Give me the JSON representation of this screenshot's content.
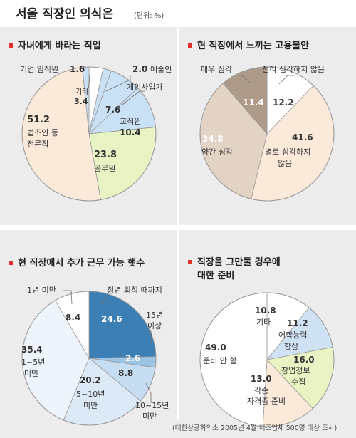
{
  "header": {
    "title": "서울 직장인 의식은",
    "unit": "(단위: %)"
  },
  "source": "(대한상공회의소 2005년 4월  제조업체 500명 대상 조사)",
  "colors": {
    "panel_bg": "#ececec",
    "bullet": "#e0322b",
    "slice_line": "#9a9a9a",
    "label_line": "#6f6f6f",
    "text": "#333333"
  },
  "chart_data": [
    {
      "type": "pie",
      "title": "자녀에게 바라는 직업",
      "slices": [
        {
          "label": "기타",
          "value": 3.4,
          "color": "#ffffff"
        },
        {
          "label": "예술인",
          "value": 2.0,
          "color": "#c9e0f5"
        },
        {
          "label": "개인사업가",
          "value": 7.6,
          "color": "#c9e0f5"
        },
        {
          "label": "교직원",
          "value": 10.4,
          "color": "#c9e0f5"
        },
        {
          "label": "공무원",
          "value": 23.8,
          "color": "#e7f3c3"
        },
        {
          "label": "법조인 등 전문직",
          "value": 51.2,
          "color": "#fbe9da"
        },
        {
          "label": "기업 임직원",
          "value": 1.6,
          "color": "#c9e0f5"
        }
      ]
    },
    {
      "type": "pie",
      "title": "현 직장에서 느끼는 고용불안",
      "slices": [
        {
          "label": "전혀 심각하지 않음",
          "value": 12.2,
          "color": "#ffffff"
        },
        {
          "label": "별로 심각하지 않음",
          "value": 41.6,
          "color": "#fbe9da"
        },
        {
          "label": "약간 심각",
          "value": 34.8,
          "color": "#e3d3c5"
        },
        {
          "label": "매우 심각",
          "value": 11.4,
          "color": "#ad9a88"
        }
      ]
    },
    {
      "type": "pie",
      "title": "현 직장에서 추가 근무 가능 햇수",
      "slices": [
        {
          "label": "정년 퇴직 때까지",
          "value": 24.6,
          "color": "#3b7fb5"
        },
        {
          "label": "15년 이상",
          "value": 2.6,
          "color": "#9cc4e4"
        },
        {
          "label": "10~15년 미만",
          "value": 8.8,
          "color": "#c6dcf1"
        },
        {
          "label": "5~10년 미만",
          "value": 20.2,
          "color": "#dce9f6"
        },
        {
          "label": "1~5년 미만",
          "value": 35.4,
          "color": "#eef4fb"
        },
        {
          "label": "1년 미만",
          "value": 8.4,
          "color": "#ffffff"
        }
      ]
    },
    {
      "type": "pie",
      "title": "직장을 그만둘 경우에 대한 준비",
      "slices": [
        {
          "label": "기타",
          "value": 10.8,
          "color": "#ffffff"
        },
        {
          "label": "어학능력 향상",
          "value": 11.2,
          "color": "#cfe2f4"
        },
        {
          "label": "창업정보 수집",
          "value": 16.0,
          "color": "#e7f3c3"
        },
        {
          "label": "각종 자격증 준비",
          "value": 13.0,
          "color": "#fbe9da"
        },
        {
          "label": "준비 안 함",
          "value": 49.0,
          "color": "#ffffff"
        }
      ]
    }
  ],
  "labels": {
    "p1": {
      "title": "자녀에게 바라는 직업",
      "기업 임직원": "기업 임직원",
      "기업 임직원_v": "1.6",
      "예술인": "예술인",
      "예술인_v": "2.0",
      "개인사업가": "개인사업가",
      "개인사업가_v": "7.6",
      "기타": "기타",
      "기타_v": "3.4",
      "교직원": "교직원",
      "교직원_v": "10.4",
      "공무원": "공무원",
      "공무원_v": "23.8",
      "전문직_v": "51.2",
      "전문직_1": "법조인 등",
      "전문직_2": "전문직"
    },
    "p2": {
      "title": "현 직장에서 느끼는 고용불안",
      "매우": "매우 심각",
      "매우_v": "11.4",
      "전혀": "전혀 심각하지 않음",
      "전혀_v": "12.2",
      "약간": "약간 심각",
      "약간_v": "34.8",
      "별로_v": "41.6",
      "별로_1": "별로 심각하지",
      "별로_2": "않음"
    },
    "p3": {
      "title": "현 직장에서 추가 근무 가능 햇수",
      "1년미만": "1년 미만",
      "1년미만_v": "8.4",
      "정년": "정년 퇴직 때까지",
      "정년_v": "24.6",
      "15년_1": "15년",
      "15년_2": "이상",
      "15년_v": "2.6",
      "1_5_v": "35.4",
      "1_5_1": "1~5년",
      "1_5_2": "미만",
      "5_10_v": "20.2",
      "5_10_1": "5~10년",
      "5_10_2": "미만",
      "10_15_v": "8.8",
      "10_15_1": "10~15년",
      "10_15_2": "미만"
    },
    "p4": {
      "title_1": "직장을 그만둘 경우에",
      "title_2": "대한 준비",
      "기타_v": "10.8",
      "기타": "기타",
      "어학_v": "11.2",
      "어학_1": "어학능력",
      "어학_2": "향상",
      "창업_v": "16.0",
      "창업_1": "창업정보",
      "창업_2": "수집",
      "자격_v": "13.0",
      "자격_1": "각종",
      "자격_2": "자격증 준비",
      "준비_v": "49.0",
      "준비": "준비 안 함"
    }
  }
}
